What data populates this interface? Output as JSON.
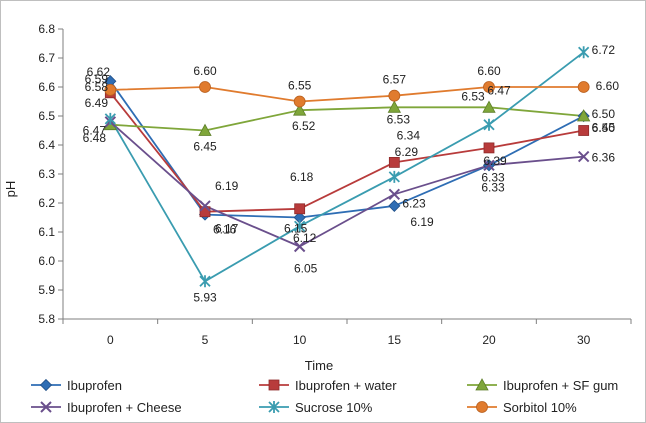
{
  "chart_data": {
    "type": "line",
    "title": "",
    "xlabel": "Time",
    "ylabel": "pH",
    "categories": [
      "0",
      "5",
      "10",
      "15",
      "20",
      "30"
    ],
    "ylim": [
      5.8,
      6.8
    ],
    "yticks": [
      "5.8",
      "5.9",
      "6.0",
      "6.1",
      "6.2",
      "6.3",
      "6.4",
      "6.5",
      "6.6",
      "6.7",
      "6.8"
    ],
    "grid": false,
    "legend_position": "bottom",
    "series": [
      {
        "name": "Ibuprofen",
        "color": "#2e6db4",
        "marker": "diamond",
        "values": [
          6.62,
          6.16,
          6.15,
          6.19,
          6.33,
          6.5
        ],
        "labels": [
          "6.62",
          "6.16",
          "6.15",
          "6.19",
          "6.33",
          "6.50"
        ]
      },
      {
        "name": "Ibuprofen + water",
        "color": "#b83b3b",
        "marker": "square",
        "values": [
          6.58,
          6.17,
          6.18,
          6.34,
          6.39,
          6.45
        ],
        "labels": [
          "6.58",
          "6.17",
          "6.18",
          "6.34",
          "6.39",
          "6.45"
        ]
      },
      {
        "name": "Ibuprofen + SF gum",
        "color": "#7fa63a",
        "marker": "triangle",
        "values": [
          6.47,
          6.45,
          6.52,
          6.53,
          6.53,
          6.5
        ],
        "labels": [
          "6.47",
          "6.45",
          "6.52",
          "6.53",
          "6.53",
          "6.50"
        ]
      },
      {
        "name": "Ibuprofen + Cheese",
        "color": "#6a4f8c",
        "marker": "x",
        "values": [
          6.48,
          6.19,
          6.05,
          6.23,
          6.33,
          6.36
        ],
        "labels": [
          "6.48",
          "6.19",
          "6.05",
          "6.23",
          "6.33",
          "6.36"
        ]
      },
      {
        "name": "Sucrose 10%",
        "color": "#3a9cb0",
        "marker": "star",
        "values": [
          6.49,
          5.93,
          6.12,
          6.29,
          6.47,
          6.72
        ],
        "labels": [
          "6.49",
          "5.93",
          "6.12",
          "6.29",
          "6.47",
          "6.72"
        ]
      },
      {
        "name": "Sorbitol 10%",
        "color": "#e07b2e",
        "marker": "circle",
        "values": [
          6.59,
          6.6,
          6.55,
          6.57,
          6.6,
          6.6
        ],
        "labels": [
          "6.59",
          "6.60",
          "6.55",
          "6.57",
          "6.60",
          "6.60"
        ]
      }
    ]
  }
}
